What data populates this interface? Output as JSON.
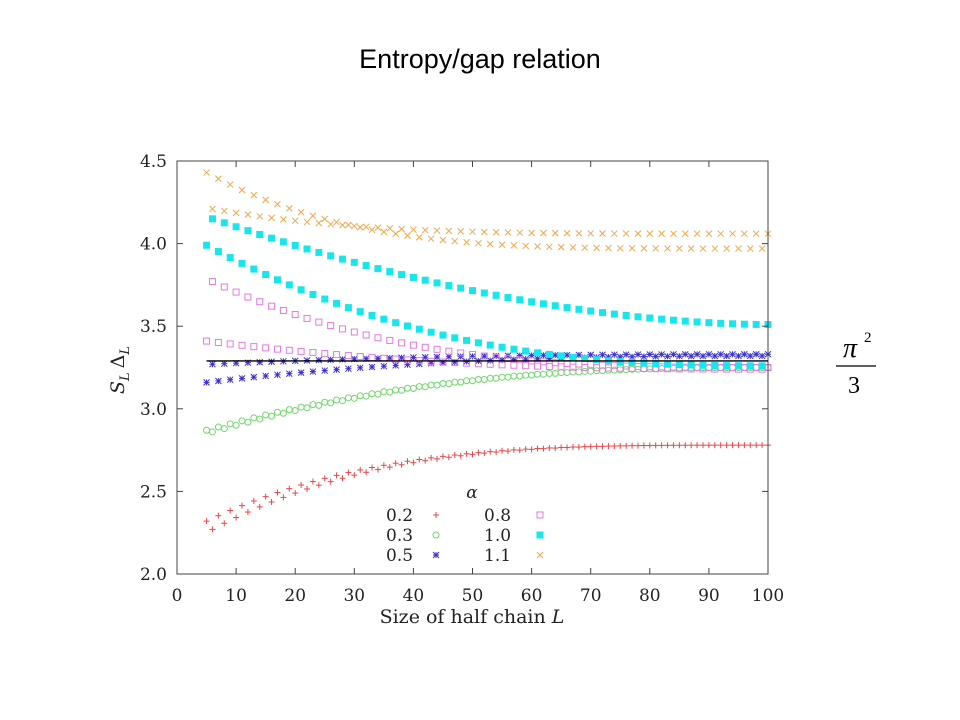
{
  "slide": {
    "title": "Entropy/gap relation",
    "annotation": {
      "symbol": "π",
      "exponent": "2",
      "denominator": "3"
    }
  },
  "chart_data": {
    "type": "scatter",
    "xlabel_text": "Size of half chain ",
    "xlabel_var": "L",
    "ylabel_main": "S",
    "ylabel_sub1": "L",
    "ylabel_delta": "Δ",
    "ylabel_sub2": "L",
    "xlim": [
      0,
      100
    ],
    "ylim": [
      2.0,
      4.5
    ],
    "x_ticks": [
      "0",
      "10",
      "20",
      "30",
      "40",
      "50",
      "60",
      "70",
      "80",
      "90",
      "100"
    ],
    "y_ticks": [
      "2.0",
      "2.5",
      "3.0",
      "3.5",
      "4.0",
      "4.5"
    ],
    "grid": false,
    "legend": {
      "title": "α",
      "placement": "bottom-center"
    },
    "reference_line": {
      "y": 3.29,
      "x_range": [
        5,
        100
      ]
    },
    "series": [
      {
        "name": "0.2",
        "marker": "plus",
        "color": "#e8474a",
        "branches": [
          [
            5,
            2.32,
            100,
            2.78,
            3.5
          ],
          [
            6,
            2.27,
            100,
            2.78,
            3.5
          ]
        ]
      },
      {
        "name": "0.3",
        "marker": "circle",
        "color": "#6fd86a",
        "branches": [
          [
            5,
            2.87,
            100,
            3.25,
            2.5
          ],
          [
            6,
            2.86,
            100,
            3.25,
            2.5
          ]
        ]
      },
      {
        "name": "0.5",
        "marker": "asterisk",
        "color": "#3a2fd0",
        "branches": [
          [
            5,
            3.16,
            100,
            3.32,
            2.5
          ],
          [
            6,
            3.27,
            100,
            3.33,
            2.5
          ]
        ]
      },
      {
        "name": "0.8",
        "marker": "square-open",
        "color": "#e47ae0",
        "branches": [
          [
            5,
            3.41,
            100,
            3.24,
            2.5
          ],
          [
            6,
            3.77,
            100,
            3.25,
            3
          ]
        ]
      },
      {
        "name": "1.0",
        "marker": "square-filled",
        "color": "#17e6ec",
        "branches": [
          [
            5,
            3.99,
            100,
            3.26,
            2.5
          ],
          [
            6,
            4.15,
            100,
            3.51,
            1.8
          ]
        ]
      },
      {
        "name": "1.1",
        "marker": "cross",
        "color": "#f0a84a",
        "branches": [
          [
            5,
            4.43,
            100,
            3.97,
            4
          ],
          [
            6,
            4.21,
            100,
            4.06,
            4
          ]
        ]
      }
    ]
  }
}
